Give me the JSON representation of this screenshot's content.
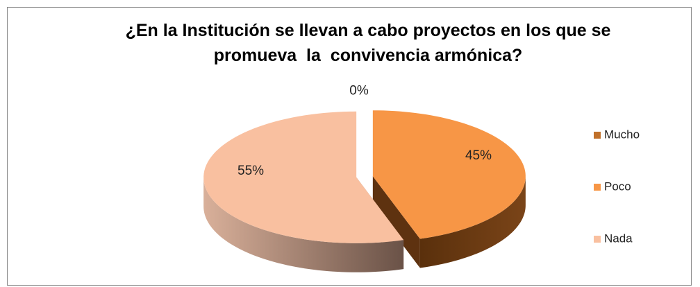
{
  "chart_data": {
    "type": "pie",
    "title": "¿En la Institución se llevan a cabo proyectos en los que se promueva  la  convivencia armónica?",
    "categories": [
      "Mucho",
      "Poco",
      "Nada"
    ],
    "values": [
      0,
      45,
      55
    ],
    "value_labels": [
      "0%",
      "45%",
      "55%"
    ],
    "colors": [
      "#c0702a",
      "#f79646",
      "#f9c0a0"
    ],
    "legend": "right"
  }
}
